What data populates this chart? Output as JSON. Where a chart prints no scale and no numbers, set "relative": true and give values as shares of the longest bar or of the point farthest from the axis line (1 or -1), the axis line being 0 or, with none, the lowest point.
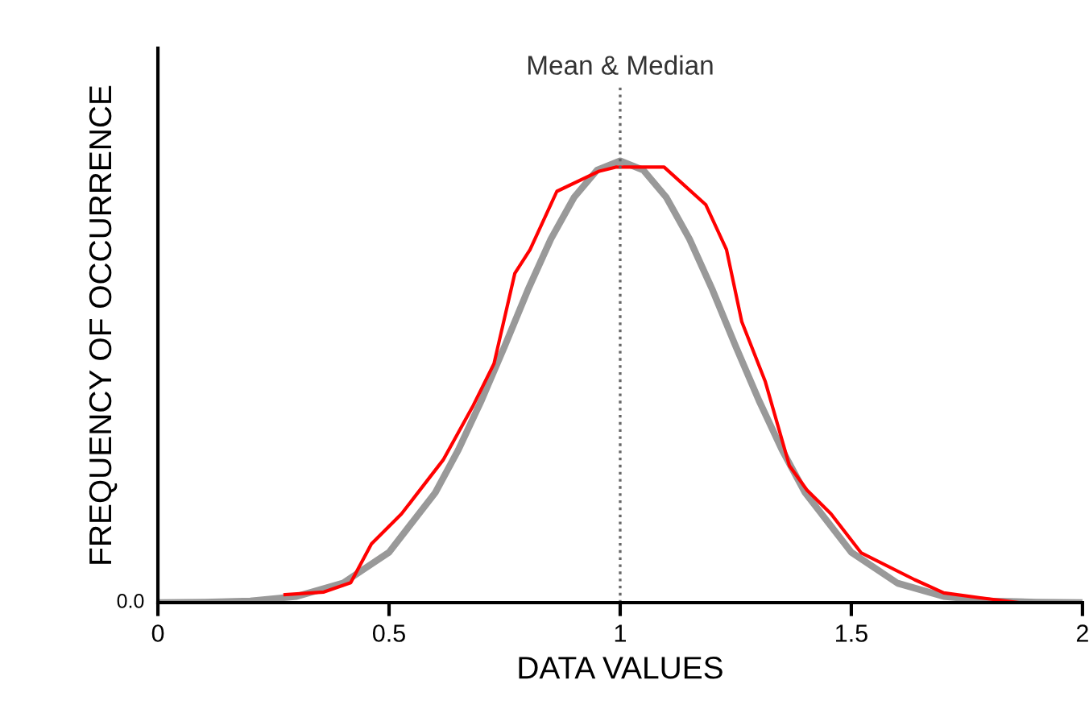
{
  "chart_data": {
    "type": "line",
    "relative": true,
    "xlabel": "DATA VALUES",
    "ylabel": "FREQUENCY OF OCCURRENCE",
    "xlim": [
      0,
      2
    ],
    "xticks": [
      0,
      0.5,
      1,
      1.5,
      2
    ],
    "grid": false,
    "marker": "none",
    "series": [
      {
        "color": "#999999",
        "x": [
          0,
          0.1,
          0.2,
          0.3,
          0.4,
          0.5,
          0.6,
          0.65,
          0.7,
          0.75,
          0.8,
          0.85,
          0.9,
          0.95,
          1,
          1.05,
          1.1,
          1.15,
          1.2,
          1.25,
          1.3,
          1.35,
          1.4,
          1.5,
          1.6,
          1.7,
          1.8,
          1.9,
          2
        ],
        "values": [
          0,
          0.001,
          0.004,
          0.014,
          0.044,
          0.114,
          0.249,
          0.346,
          0.458,
          0.58,
          0.707,
          0.823,
          0.917,
          0.979,
          1,
          0.979,
          0.917,
          0.823,
          0.707,
          0.58,
          0.458,
          0.346,
          0.249,
          0.114,
          0.044,
          0.014,
          0.004,
          0.001,
          0
        ]
      },
      {
        "color": "#ff0000",
        "x": [
          0.275,
          0.359,
          0.417,
          0.462,
          0.527,
          0.617,
          0.682,
          0.727,
          0.772,
          0.805,
          0.863,
          0.953,
          0.992,
          1.095,
          1.185,
          1.23,
          1.263,
          1.314,
          1.366,
          1.404,
          1.456,
          1.521,
          1.637,
          1.7,
          1.779,
          1.863
        ],
        "values": [
          0.018,
          0.024,
          0.045,
          0.133,
          0.201,
          0.323,
          0.446,
          0.541,
          0.745,
          0.799,
          0.931,
          0.976,
          0.986,
          0.986,
          0.901,
          0.799,
          0.636,
          0.5,
          0.31,
          0.255,
          0.201,
          0.113,
          0.052,
          0.022,
          0.011,
          0
        ]
      }
    ],
    "ref_lines": [
      {
        "axis": "x",
        "value": 1,
        "label": "Mean & Median",
        "color": "#666666",
        "line_style": "dotted"
      }
    ],
    "annotations": [
      {
        "text": "0.0",
        "x": 0,
        "y": 0
      }
    ]
  }
}
